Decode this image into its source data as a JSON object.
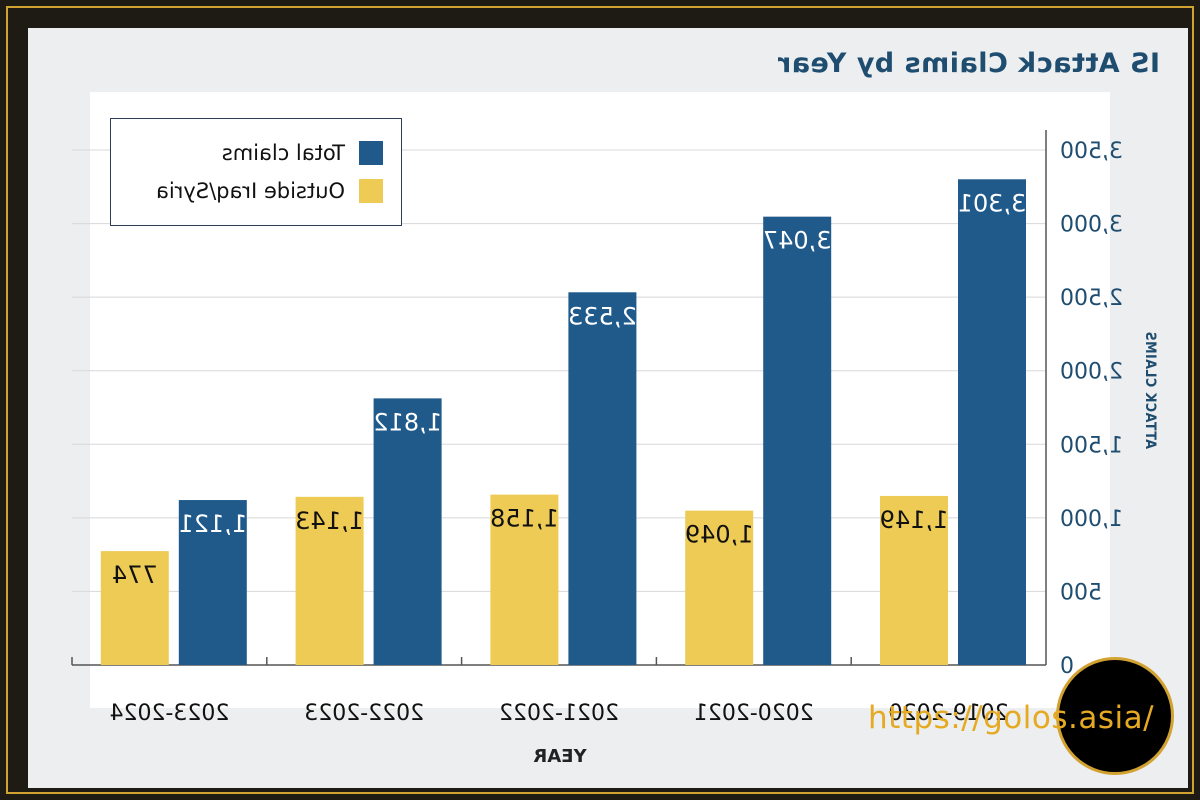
{
  "chart_data": {
    "type": "bar",
    "title": "IS Attack Claims by Year",
    "xlabel": "YEAR",
    "ylabel": "ATTACK CLAIMS",
    "categories": [
      "2019-2020",
      "2020-2021",
      "2021-2022",
      "2022-2023",
      "2023-2024"
    ],
    "series": [
      {
        "name": "Total claims",
        "color": "#1f5a8b",
        "values": [
          3301,
          3047,
          2533,
          1812,
          1121
        ],
        "labels": [
          "3,301",
          "3,047",
          "2,533",
          "1,812",
          "1,121"
        ]
      },
      {
        "name": "Outside Iraq/Syria",
        "color": "#eecb55",
        "values": [
          1149,
          1049,
          1158,
          1143,
          774
        ],
        "labels": [
          "1,149",
          "1,049",
          "1,158",
          "1,143",
          "774"
        ]
      }
    ],
    "ylim": [
      0,
      3500
    ],
    "yticks": [
      0,
      500,
      1000,
      1500,
      2000,
      2500,
      3000,
      3500
    ],
    "ytick_labels": [
      "0",
      "500",
      "1,000",
      "1,500",
      "2,000",
      "2,500",
      "3,000",
      "3,500"
    ],
    "grid": true,
    "legend_position": "top-left",
    "mirrored": true
  },
  "watermark": {
    "text": "https://golos.asia/"
  }
}
